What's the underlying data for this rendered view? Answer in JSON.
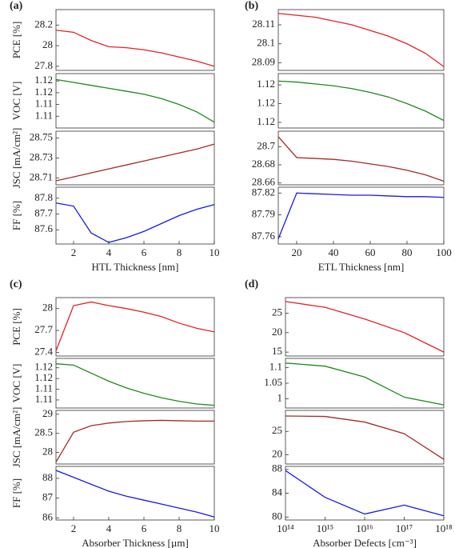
{
  "chart_data": [
    {
      "type": "line",
      "title": "(a)",
      "ylabel": "PCE [%]",
      "x": [
        1,
        2,
        3,
        4,
        5,
        6,
        7,
        8,
        9,
        10
      ],
      "values": [
        28.15,
        28.13,
        28.05,
        27.99,
        27.98,
        27.96,
        27.93,
        27.89,
        27.85,
        27.8
      ],
      "color": "#e8202a",
      "xlim": [
        1,
        10
      ],
      "ylim": [
        27.76,
        28.35
      ],
      "yticks": [
        27.8,
        28,
        28.2
      ]
    },
    {
      "type": "line",
      "ylabel": "VOC [V]",
      "x": [
        1,
        2,
        3,
        4,
        5,
        6,
        7,
        8,
        9,
        10
      ],
      "values": [
        1.1225,
        1.1215,
        1.1205,
        1.1195,
        1.1185,
        1.1175,
        1.116,
        1.114,
        1.1115,
        1.108
      ],
      "color": "#1e8a1e",
      "xlim": [
        1,
        10
      ],
      "ylim": [
        1.106,
        1.1245
      ],
      "yticks": [
        {
          "value": 1.11,
          "label": "1.11"
        },
        {
          "value": 1.114,
          "label": "1.11"
        },
        {
          "value": 1.118,
          "label": "1.12"
        },
        {
          "value": 1.122,
          "label": "1.12"
        }
      ]
    },
    {
      "type": "line",
      "ylabel": "JSC [mA/cm²]",
      "x": [
        1,
        2,
        3,
        4,
        5,
        6,
        7,
        8,
        9,
        10
      ],
      "values": [
        28.707,
        28.711,
        28.715,
        28.719,
        28.723,
        28.727,
        28.731,
        28.735,
        28.739,
        28.744
      ],
      "color": "#a52a2a",
      "xlim": [
        1,
        10
      ],
      "ylim": [
        28.703,
        28.757
      ],
      "yticks": [
        28.71,
        28.73,
        28.75
      ]
    },
    {
      "type": "line",
      "ylabel": "FF [%]",
      "xlabel": "HTL Thickness [nm]",
      "x": [
        1,
        2,
        3,
        4,
        5,
        6,
        7,
        8,
        9,
        10
      ],
      "values": [
        87.77,
        87.75,
        87.58,
        87.52,
        87.55,
        87.59,
        87.64,
        87.69,
        87.73,
        87.76
      ],
      "color": "#1a1aee",
      "xlim": [
        1,
        10
      ],
      "ylim": [
        87.51,
        87.87
      ],
      "yticks": [
        87.6,
        87.7,
        87.8
      ],
      "xticks": [
        2,
        4,
        6,
        8,
        10
      ]
    },
    {
      "type": "line",
      "title": "(b)",
      "x": [
        10,
        20,
        30,
        40,
        50,
        60,
        70,
        80,
        90,
        100
      ],
      "values": [
        28.116,
        28.115,
        28.114,
        28.112,
        28.11,
        28.107,
        28.104,
        28.1,
        28.095,
        28.088
      ],
      "color": "#e8202a",
      "xlim": [
        10,
        100
      ],
      "ylim": [
        28.086,
        28.118
      ],
      "yticks": [
        28.09,
        28.1,
        28.11
      ]
    },
    {
      "type": "line",
      "x": [
        10,
        20,
        30,
        40,
        50,
        60,
        70,
        80,
        90,
        100
      ],
      "values": [
        1.1224,
        1.1223,
        1.1221,
        1.1219,
        1.1216,
        1.1212,
        1.1207,
        1.12,
        1.1192,
        1.1182
      ],
      "color": "#1e8a1e",
      "xlim": [
        10,
        100
      ],
      "ylim": [
        1.1174,
        1.1232
      ],
      "yticks": [
        {
          "value": 1.118,
          "label": "1.12"
        },
        {
          "value": 1.12,
          "label": "1.12"
        },
        {
          "value": 1.122,
          "label": "1.12"
        }
      ]
    },
    {
      "type": "line",
      "x": [
        10,
        20,
        30,
        40,
        50,
        60,
        70,
        80,
        90,
        100
      ],
      "values": [
        28.711,
        28.688,
        28.687,
        28.686,
        28.684,
        28.681,
        28.678,
        28.674,
        28.669,
        28.662
      ],
      "color": "#a52a2a",
      "xlim": [
        10,
        100
      ],
      "ylim": [
        28.658,
        28.717
      ],
      "yticks": [
        28.66,
        28.68,
        28.7
      ]
    },
    {
      "type": "line",
      "xlabel": "ETL Thickness [nm]",
      "x": [
        10,
        20,
        30,
        40,
        50,
        60,
        70,
        80,
        90,
        100
      ],
      "values": [
        87.757,
        87.82,
        87.819,
        87.818,
        87.817,
        87.817,
        87.816,
        87.815,
        87.815,
        87.814
      ],
      "color": "#1a1aee",
      "xlim": [
        10,
        100
      ],
      "ylim": [
        87.75,
        87.828
      ],
      "yticks": [
        87.76,
        87.79,
        87.82
      ],
      "xticks": [
        20,
        40,
        60,
        80,
        100
      ]
    },
    {
      "type": "line",
      "title": "(c)",
      "ylabel": "PCE [%]",
      "x": [
        1,
        2,
        3,
        4,
        5,
        6,
        7,
        8,
        9,
        10
      ],
      "values": [
        27.42,
        28.04,
        28.09,
        28.04,
        28.0,
        27.95,
        27.89,
        27.8,
        27.73,
        27.68
      ],
      "color": "#e8202a",
      "xlim": [
        1,
        10
      ],
      "ylim": [
        27.35,
        28.15
      ],
      "yticks": [
        27.4,
        27.7,
        28
      ]
    },
    {
      "type": "line",
      "ylabel": "VOC [V]",
      "x": [
        1,
        2,
        3,
        4,
        5,
        6,
        7,
        8,
        9,
        10
      ],
      "values": [
        1.1235,
        1.123,
        1.12,
        1.117,
        1.1145,
        1.1125,
        1.1108,
        1.1095,
        1.1085,
        1.108
      ],
      "color": "#1e8a1e",
      "xlim": [
        1,
        10
      ],
      "ylim": [
        1.107,
        1.1255
      ],
      "yticks": [
        {
          "value": 1.11,
          "label": "1.11"
        },
        {
          "value": 1.114,
          "label": "1.11"
        },
        {
          "value": 1.118,
          "label": "1.12"
        },
        {
          "value": 1.122,
          "label": "1.12"
        }
      ]
    },
    {
      "type": "line",
      "ylabel": "JSC [mA/cm²]",
      "x": [
        1,
        2,
        3,
        4,
        5,
        6,
        7,
        8,
        9,
        10
      ],
      "values": [
        27.75,
        28.53,
        28.7,
        28.77,
        28.81,
        28.83,
        28.84,
        28.83,
        28.82,
        28.82
      ],
      "color": "#a52a2a",
      "xlim": [
        1,
        10
      ],
      "ylim": [
        27.7,
        29.1
      ],
      "yticks": [
        28,
        28.5,
        29
      ]
    },
    {
      "type": "line",
      "ylabel": "FF [%]",
      "xlabel": "Absorber Thickness [µm]",
      "x": [
        1,
        2,
        3,
        4,
        5,
        6,
        7,
        8,
        9,
        10
      ],
      "values": [
        88.4,
        88.05,
        87.7,
        87.35,
        87.1,
        86.9,
        86.7,
        86.5,
        86.3,
        86.05
      ],
      "color": "#1a1aee",
      "xlim": [
        1,
        10
      ],
      "ylim": [
        85.9,
        88.6
      ],
      "yticks": [
        86,
        87,
        88
      ],
      "xticks": [
        2,
        4,
        6,
        8,
        10
      ]
    },
    {
      "type": "line",
      "title": "(d)",
      "xscale": "log",
      "x": [
        100000000000000.0,
        1000000000000000.0,
        1e+16,
        1e+17,
        1e+18
      ],
      "values": [
        28,
        26.5,
        23.5,
        20,
        15
      ],
      "color": "#e8202a",
      "xlim": [
        100000000000000.0,
        1e+18
      ],
      "ylim": [
        14,
        29
      ],
      "yticks": [
        15,
        20,
        25
      ]
    },
    {
      "type": "line",
      "xscale": "log",
      "x": [
        100000000000000.0,
        1000000000000000.0,
        1e+16,
        1e+17,
        1e+18
      ],
      "values": [
        1.115,
        1.105,
        1.07,
        1.005,
        0.98
      ],
      "color": "#1e8a1e",
      "xlim": [
        100000000000000.0,
        1e+18
      ],
      "ylim": [
        0.97,
        1.13
      ],
      "yticks": [
        1,
        1.05,
        1.1
      ]
    },
    {
      "type": "line",
      "xscale": "log",
      "x": [
        100000000000000.0,
        1000000000000000.0,
        1e+16,
        1e+17,
        1e+18
      ],
      "values": [
        28.3,
        28.2,
        27,
        24.5,
        19
      ],
      "color": "#a52a2a",
      "xlim": [
        100000000000000.0,
        1e+18
      ],
      "ylim": [
        18,
        29.5
      ],
      "yticks": [
        20,
        25
      ]
    },
    {
      "type": "line",
      "xscale": "log",
      "xlabel": "Absorber Defects [cm⁻³]",
      "x": [
        100000000000000.0,
        1000000000000000.0,
        1e+16,
        1e+17,
        1e+18
      ],
      "values": [
        87.8,
        83.3,
        80.5,
        82,
        80.2
      ],
      "color": "#1a1aee",
      "xlim": [
        100000000000000.0,
        1e+18
      ],
      "ylim": [
        79.5,
        88.5
      ],
      "yticks": [
        80,
        84,
        88
      ],
      "xticks": [
        {
          "value": 100000000000000.0,
          "label": "10¹⁴"
        },
        {
          "value": 1000000000000000.0,
          "label": "10¹⁵"
        },
        {
          "value": 1e+16,
          "label": "10¹⁶"
        },
        {
          "value": 1e+17,
          "label": "10¹⁷"
        },
        {
          "value": 1e+18,
          "label": "10¹⁸"
        }
      ]
    }
  ]
}
